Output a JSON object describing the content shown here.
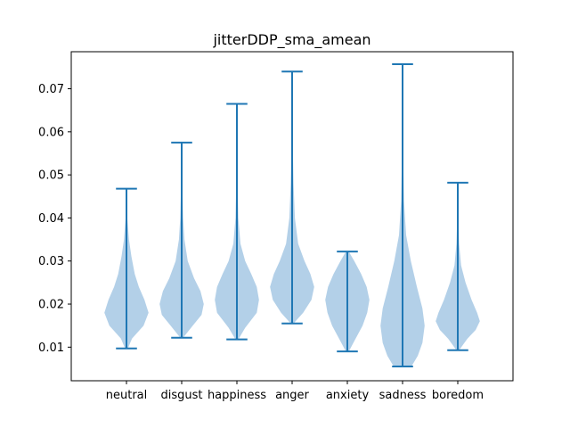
{
  "chart_data": {
    "type": "violin",
    "title": "jitterDDP_sma_amean",
    "xlabel": "",
    "ylabel": "",
    "categories": [
      "neutral",
      "disgust",
      "happiness",
      "anger",
      "anxiety",
      "sadness",
      "boredom"
    ],
    "ylim": [
      0.0022,
      0.0786
    ],
    "yticks": [
      0.01,
      0.02,
      0.03,
      0.04,
      0.05,
      0.06,
      0.07
    ],
    "ytick_labels": [
      "0.01",
      "0.02",
      "0.03",
      "0.04",
      "0.05",
      "0.06",
      "0.07"
    ],
    "grid": false,
    "legend": "none",
    "colors": {
      "violin_fill": "#a6c8e4",
      "stroke": "#1f77b4",
      "axis": "#000000"
    },
    "series": [
      {
        "category": "neutral",
        "min": 0.0097,
        "max": 0.0468,
        "profile": [
          [
            0.0097,
            0.05
          ],
          [
            0.012,
            0.2
          ],
          [
            0.015,
            0.62
          ],
          [
            0.018,
            0.8
          ],
          [
            0.021,
            0.65
          ],
          [
            0.024,
            0.45
          ],
          [
            0.027,
            0.3
          ],
          [
            0.031,
            0.18
          ],
          [
            0.035,
            0.09
          ],
          [
            0.04,
            0.03
          ],
          [
            0.0468,
            0.0
          ]
        ]
      },
      {
        "category": "disgust",
        "min": 0.0122,
        "max": 0.0575,
        "profile": [
          [
            0.0122,
            0.05
          ],
          [
            0.015,
            0.4
          ],
          [
            0.0175,
            0.72
          ],
          [
            0.02,
            0.8
          ],
          [
            0.023,
            0.68
          ],
          [
            0.026,
            0.45
          ],
          [
            0.03,
            0.22
          ],
          [
            0.035,
            0.1
          ],
          [
            0.04,
            0.05
          ],
          [
            0.048,
            0.02
          ],
          [
            0.0575,
            0.0
          ]
        ]
      },
      {
        "category": "happiness",
        "min": 0.0118,
        "max": 0.0665,
        "profile": [
          [
            0.0118,
            0.05
          ],
          [
            0.0145,
            0.3
          ],
          [
            0.018,
            0.72
          ],
          [
            0.021,
            0.8
          ],
          [
            0.024,
            0.72
          ],
          [
            0.027,
            0.52
          ],
          [
            0.03,
            0.3
          ],
          [
            0.034,
            0.13
          ],
          [
            0.04,
            0.05
          ],
          [
            0.05,
            0.02
          ],
          [
            0.0665,
            0.0
          ]
        ]
      },
      {
        "category": "anger",
        "min": 0.0155,
        "max": 0.074,
        "profile": [
          [
            0.0155,
            0.05
          ],
          [
            0.018,
            0.4
          ],
          [
            0.021,
            0.7
          ],
          [
            0.024,
            0.8
          ],
          [
            0.027,
            0.66
          ],
          [
            0.03,
            0.45
          ],
          [
            0.034,
            0.22
          ],
          [
            0.04,
            0.1
          ],
          [
            0.048,
            0.05
          ],
          [
            0.058,
            0.02
          ],
          [
            0.074,
            0.0
          ]
        ]
      },
      {
        "category": "anxiety",
        "min": 0.009,
        "max": 0.0322,
        "profile": [
          [
            0.009,
            0.05
          ],
          [
            0.012,
            0.3
          ],
          [
            0.015,
            0.55
          ],
          [
            0.018,
            0.72
          ],
          [
            0.021,
            0.8
          ],
          [
            0.024,
            0.7
          ],
          [
            0.027,
            0.5
          ],
          [
            0.03,
            0.25
          ],
          [
            0.0322,
            0.05
          ]
        ]
      },
      {
        "category": "sadness",
        "min": 0.0055,
        "max": 0.0757,
        "profile": [
          [
            0.0055,
            0.32
          ],
          [
            0.008,
            0.55
          ],
          [
            0.011,
            0.72
          ],
          [
            0.015,
            0.8
          ],
          [
            0.019,
            0.72
          ],
          [
            0.024,
            0.52
          ],
          [
            0.03,
            0.3
          ],
          [
            0.036,
            0.13
          ],
          [
            0.044,
            0.05
          ],
          [
            0.055,
            0.02
          ],
          [
            0.0757,
            0.0
          ]
        ]
      },
      {
        "category": "boredom",
        "min": 0.0093,
        "max": 0.0482,
        "profile": [
          [
            0.0093,
            0.05
          ],
          [
            0.012,
            0.35
          ],
          [
            0.014,
            0.65
          ],
          [
            0.016,
            0.8
          ],
          [
            0.018,
            0.7
          ],
          [
            0.021,
            0.5
          ],
          [
            0.025,
            0.28
          ],
          [
            0.029,
            0.12
          ],
          [
            0.034,
            0.05
          ],
          [
            0.04,
            0.02
          ],
          [
            0.0482,
            0.0
          ]
        ]
      }
    ]
  }
}
